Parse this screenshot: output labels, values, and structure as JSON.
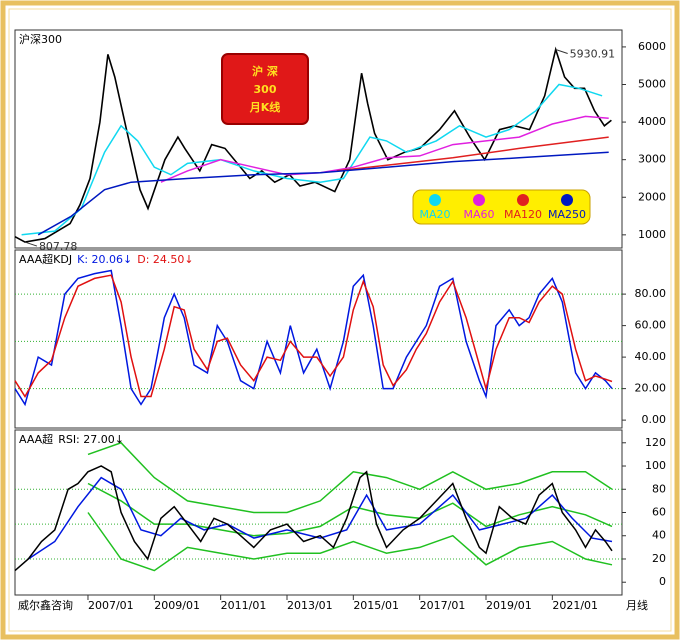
{
  "chart_data": [
    {
      "type": "line",
      "title": "沪深300",
      "badge": [
        "沪  深",
        "300",
        "月K线"
      ],
      "xlim": [
        2004.8,
        2023.1
      ],
      "ylim": [
        650,
        6450
      ],
      "yticks": [
        1000,
        2000,
        3000,
        4000,
        5000,
        6000
      ],
      "legend": "bottom-right",
      "series": [
        {
          "color": "#000000",
          "x": [
            2004.8,
            2005.1,
            2005.7,
            2006.46,
            2006.76,
            2007.06,
            2007.36,
            2007.6,
            2007.81,
            2008.11,
            2008.57,
            2008.81,
            2009.32,
            2009.71,
            2009.92,
            2010.37,
            2010.73,
            2011.13,
            2011.88,
            2012.24,
            2012.63,
            2013.08,
            2013.39,
            2013.84,
            2014.44,
            2014.89,
            2015.25,
            2015.43,
            2015.64,
            2016.04,
            2016.55,
            2017.0,
            2017.6,
            2018.05,
            2018.51,
            2018.96,
            2019.41,
            2019.86,
            2020.31,
            2020.77,
            2021.1,
            2021.37,
            2021.67,
            2021.97,
            2022.27,
            2022.57,
            2022.78
          ],
          "values": [
            950,
            807.78,
            900,
            1300,
            1800,
            2500,
            4000,
            5800,
            5200,
            4000,
            2200,
            1700,
            3000,
            3600,
            3300,
            2700,
            3400,
            3300,
            2500,
            2700,
            2400,
            2600,
            2300,
            2400,
            2150,
            3000,
            5300,
            4500,
            3700,
            3000,
            3200,
            3300,
            3800,
            4300,
            3600,
            3000,
            3800,
            3900,
            3800,
            4700,
            5930.91,
            5200,
            4900,
            4900,
            4300,
            3900,
            4050
          ],
          "value_labels": [
            null,
            "807.78",
            null,
            null,
            null,
            null,
            null,
            null,
            null,
            null,
            null,
            null,
            null,
            null,
            null,
            null,
            null,
            null,
            null,
            null,
            null,
            null,
            null,
            null,
            null,
            null,
            null,
            null,
            null,
            null,
            null,
            null,
            null,
            null,
            null,
            null,
            null,
            null,
            null,
            null,
            "5930.91",
            null,
            null,
            null,
            null,
            null,
            null
          ]
        },
        {
          "name": "MA20",
          "color": "#10d8f0",
          "x": [
            2005.0,
            2006.0,
            2006.8,
            2007.5,
            2008.0,
            2008.5,
            2009.0,
            2009.5,
            2010.0,
            2011.0,
            2012.0,
            2013.0,
            2014.0,
            2014.7,
            2015.5,
            2016.0,
            2016.6,
            2017.5,
            2018.2,
            2019.0,
            2019.7,
            2020.5,
            2021.2,
            2021.8,
            2022.5
          ],
          "values": [
            1000,
            1100,
            1700,
            3200,
            3900,
            3500,
            2800,
            2600,
            2900,
            3000,
            2700,
            2500,
            2400,
            2500,
            3600,
            3500,
            3200,
            3500,
            3900,
            3600,
            3800,
            4300,
            5000,
            4900,
            4700
          ]
        },
        {
          "name": "MA60",
          "color": "#e020e0",
          "x": [
            2009.2,
            2010.0,
            2011.0,
            2012.0,
            2013.0,
            2014.0,
            2015.0,
            2016.0,
            2017.0,
            2018.0,
            2019.0,
            2020.0,
            2021.0,
            2022.0,
            2022.7
          ],
          "values": [
            2400,
            2700,
            3000,
            2800,
            2600,
            2650,
            2800,
            3050,
            3100,
            3400,
            3500,
            3600,
            3950,
            4150,
            4100
          ]
        },
        {
          "name": "MA120",
          "color": "#e02020",
          "x": [
            2014.5,
            2016.0,
            2018.0,
            2020.0,
            2022.7
          ],
          "values": [
            2700,
            2850,
            3050,
            3300,
            3600
          ]
        },
        {
          "name": "MA250",
          "color": "#0018c0",
          "x": [
            2005.5,
            2006.5,
            2007.5,
            2008.3,
            2010.0,
            2012.0,
            2014.0,
            2016.0,
            2018.0,
            2020.0,
            2022.7
          ],
          "values": [
            1000,
            1500,
            2200,
            2400,
            2500,
            2600,
            2650,
            2800,
            2950,
            3050,
            3200
          ]
        }
      ]
    },
    {
      "type": "line",
      "title": "AAA超KDJ",
      "xlim": [
        2004.8,
        2023.1
      ],
      "ylim": [
        -5,
        108
      ],
      "yticks": [
        {
          "value": 0,
          "label": "0.00"
        },
        {
          "value": 20,
          "label": "20.00"
        },
        {
          "value": 40,
          "label": "40.00"
        },
        {
          "value": 60,
          "label": "60.00"
        },
        {
          "value": 80,
          "label": "80.00"
        }
      ],
      "levels": [
        80,
        50,
        20
      ],
      "series": [
        {
          "readout": "K: 20.06↓",
          "color": "#0018e0",
          "x": [
            2004.8,
            2005.1,
            2005.5,
            2005.9,
            2006.3,
            2006.7,
            2007.2,
            2007.7,
            2008.0,
            2008.3,
            2008.6,
            2008.9,
            2009.3,
            2009.6,
            2009.9,
            2010.2,
            2010.6,
            2010.9,
            2011.2,
            2011.6,
            2012.0,
            2012.4,
            2012.8,
            2013.1,
            2013.5,
            2013.9,
            2014.3,
            2014.7,
            2015.0,
            2015.3,
            2015.6,
            2015.9,
            2016.2,
            2016.6,
            2016.9,
            2017.2,
            2017.6,
            2018.0,
            2018.4,
            2018.8,
            2019.0,
            2019.3,
            2019.7,
            2020.0,
            2020.3,
            2020.6,
            2021.0,
            2021.3,
            2021.7,
            2022.0,
            2022.3,
            2022.6,
            2022.8
          ],
          "values": [
            20,
            10,
            40,
            35,
            80,
            90,
            93,
            95,
            60,
            20,
            10,
            20,
            65,
            80,
            65,
            35,
            30,
            60,
            50,
            25,
            20,
            50,
            30,
            60,
            30,
            45,
            20,
            50,
            85,
            92,
            60,
            20,
            20,
            40,
            50,
            60,
            85,
            90,
            50,
            25,
            15,
            60,
            70,
            60,
            65,
            80,
            90,
            75,
            30,
            20,
            30,
            25,
            20.06
          ]
        },
        {
          "readout": "D: 24.50↓",
          "color": "#e01010",
          "x": [
            2004.8,
            2005.1,
            2005.5,
            2005.9,
            2006.3,
            2006.7,
            2007.2,
            2007.7,
            2008.0,
            2008.3,
            2008.6,
            2008.9,
            2009.3,
            2009.6,
            2009.9,
            2010.2,
            2010.6,
            2010.9,
            2011.2,
            2011.6,
            2012.0,
            2012.4,
            2012.8,
            2013.1,
            2013.5,
            2013.9,
            2014.3,
            2014.7,
            2015.0,
            2015.3,
            2015.6,
            2015.9,
            2016.2,
            2016.6,
            2016.9,
            2017.2,
            2017.6,
            2018.0,
            2018.4,
            2018.8,
            2019.0,
            2019.3,
            2019.7,
            2020.0,
            2020.3,
            2020.6,
            2021.0,
            2021.3,
            2021.7,
            2022.0,
            2022.3,
            2022.6,
            2022.8
          ],
          "values": [
            25,
            15,
            30,
            38,
            65,
            85,
            90,
            92,
            75,
            40,
            15,
            15,
            45,
            72,
            70,
            45,
            32,
            50,
            52,
            35,
            25,
            40,
            38,
            50,
            40,
            40,
            28,
            40,
            70,
            88,
            72,
            35,
            22,
            32,
            45,
            55,
            75,
            88,
            65,
            35,
            20,
            45,
            65,
            65,
            62,
            75,
            85,
            80,
            45,
            25,
            28,
            26,
            24.5
          ]
        }
      ]
    },
    {
      "type": "line",
      "title": "AAA超",
      "xlim": [
        2004.8,
        2023.1
      ],
      "ylim": [
        -11,
        131
      ],
      "yticks": [
        0,
        20,
        40,
        60,
        80,
        100,
        120
      ],
      "levels": [
        80,
        50,
        20
      ],
      "xticks": [
        {
          "value": 2007,
          "label": "2007/01"
        },
        {
          "value": 2009,
          "label": "2009/01"
        },
        {
          "value": 2011,
          "label": "2011/01"
        },
        {
          "value": 2013,
          "label": "2013/01"
        },
        {
          "value": 2015,
          "label": "2015/01"
        },
        {
          "value": 2017,
          "label": "2017/01"
        },
        {
          "value": 2019,
          "label": "2019/01"
        },
        {
          "value": 2021,
          "label": "2021/01"
        }
      ],
      "source": "威尔鑫咨询",
      "period": "月线",
      "series": [
        {
          "color": "#20c020",
          "x": [
            2007,
            2008,
            2009,
            2010,
            2011,
            2012,
            2013,
            2014,
            2015,
            2016,
            2017,
            2018,
            2019,
            2020,
            2021,
            2022,
            2022.8
          ],
          "values": [
            110,
            120,
            90,
            70,
            65,
            60,
            60,
            70,
            95,
            90,
            80,
            95,
            80,
            85,
            95,
            95,
            80
          ]
        },
        {
          "color": "#20c020",
          "x": [
            2007,
            2008,
            2009,
            2010,
            2011,
            2012,
            2013,
            2014,
            2015,
            2016,
            2017,
            2018,
            2019,
            2020,
            2021,
            2022,
            2022.8
          ],
          "values": [
            85,
            70,
            50,
            50,
            45,
            40,
            42,
            48,
            65,
            58,
            55,
            68,
            48,
            58,
            65,
            58,
            48
          ]
        },
        {
          "color": "#20c020",
          "x": [
            2007,
            2008,
            2009,
            2010,
            2011,
            2012,
            2013,
            2014,
            2015,
            2016,
            2017,
            2018,
            2019,
            2020,
            2021,
            2022,
            2022.8
          ],
          "values": [
            60,
            20,
            10,
            30,
            25,
            20,
            25,
            25,
            35,
            25,
            30,
            40,
            15,
            30,
            35,
            20,
            15
          ]
        },
        {
          "color": "#0018e0",
          "x": [
            2005.2,
            2006.0,
            2006.7,
            2007.4,
            2008.0,
            2008.6,
            2009.2,
            2009.8,
            2010.5,
            2011.2,
            2012.0,
            2013.0,
            2014.0,
            2014.8,
            2015.4,
            2016.0,
            2017.0,
            2018.0,
            2018.8,
            2019.5,
            2020.2,
            2021.0,
            2021.6,
            2022.2,
            2022.8
          ],
          "values": [
            20,
            35,
            65,
            90,
            80,
            45,
            40,
            55,
            45,
            50,
            38,
            45,
            38,
            45,
            75,
            45,
            50,
            75,
            45,
            50,
            55,
            75,
            55,
            38,
            35
          ]
        },
        {
          "readout": "RSI: 27.00↓",
          "color": "#000000",
          "x": [
            2004.8,
            2005.2,
            2005.6,
            2006.0,
            2006.4,
            2006.7,
            2007.0,
            2007.4,
            2007.7,
            2008.0,
            2008.4,
            2008.8,
            2009.2,
            2009.6,
            2010.0,
            2010.4,
            2010.8,
            2011.2,
            2011.6,
            2012.0,
            2012.5,
            2013.0,
            2013.5,
            2014.0,
            2014.4,
            2014.8,
            2015.2,
            2015.4,
            2015.7,
            2016.0,
            2016.5,
            2017.0,
            2017.5,
            2018.0,
            2018.4,
            2018.8,
            2019.0,
            2019.4,
            2019.8,
            2020.2,
            2020.6,
            2021.0,
            2021.3,
            2021.7,
            2022.0,
            2022.3,
            2022.6,
            2022.8
          ],
          "values": [
            10,
            20,
            35,
            45,
            80,
            85,
            95,
            100,
            95,
            60,
            35,
            20,
            55,
            65,
            50,
            35,
            55,
            50,
            40,
            30,
            45,
            50,
            35,
            40,
            30,
            55,
            90,
            95,
            50,
            30,
            45,
            55,
            70,
            85,
            55,
            30,
            25,
            65,
            55,
            50,
            75,
            85,
            60,
            45,
            30,
            45,
            35,
            27.0
          ]
        }
      ]
    }
  ]
}
